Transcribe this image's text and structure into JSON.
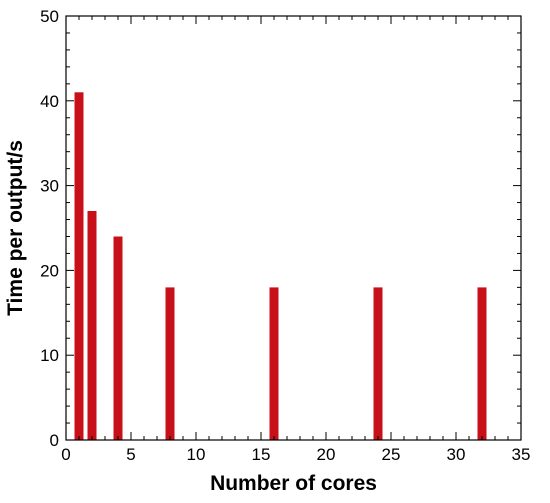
{
  "chart_data": {
    "type": "bar",
    "title": "",
    "xlabel": "Number of cores",
    "ylabel": "Time per output/s",
    "xlim": [
      0,
      35
    ],
    "ylim": [
      0,
      50
    ],
    "x_ticks": [
      0,
      5,
      10,
      15,
      20,
      25,
      30,
      35
    ],
    "y_ticks": [
      0,
      10,
      20,
      30,
      40,
      50
    ],
    "grid": false,
    "legend": "none",
    "bar_color": "#c8101a",
    "x": [
      1,
      2,
      4,
      8,
      16,
      24,
      32
    ],
    "values": [
      41,
      27,
      24,
      18,
      18,
      18,
      18
    ]
  }
}
